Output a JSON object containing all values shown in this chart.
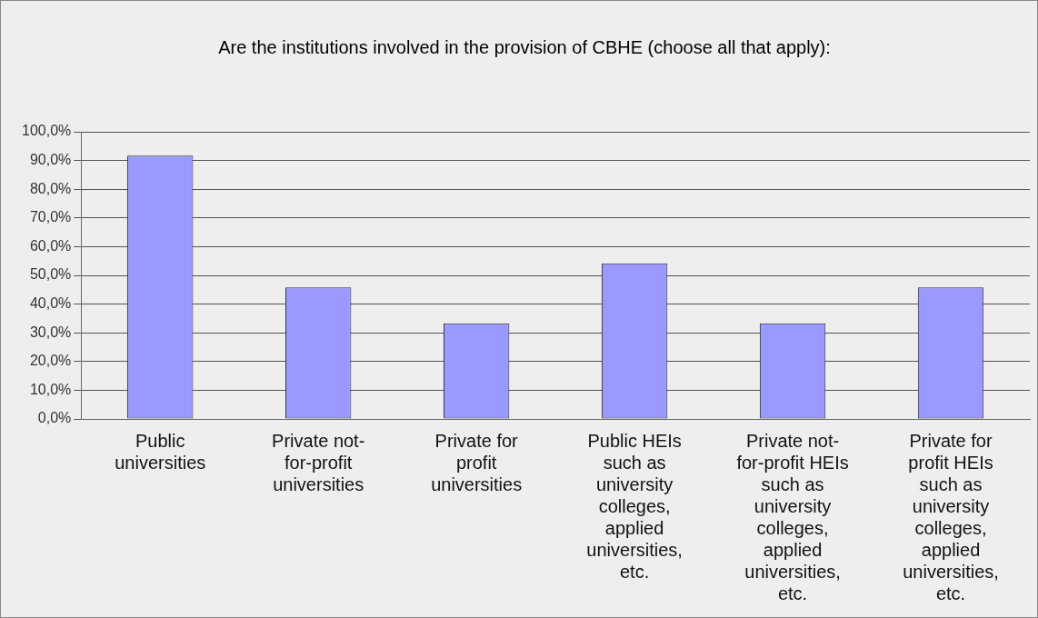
{
  "chart_data": {
    "type": "bar",
    "title": "Are the institutions involved in the provision of CBHE (choose all that apply):",
    "categories": [
      "Public universities",
      "Private not-for-profit universities",
      "Private for profit universities",
      "Public HEIs such as university colleges, applied universities, etc.",
      "Private not-for-profit HEIs such as university colleges, applied universities, etc.",
      "Private for profit HEIs such as university colleges, applied universities, etc."
    ],
    "values": [
      91.7,
      45.8,
      33.3,
      54.2,
      33.3,
      45.8
    ],
    "color": "#9999ff",
    "ylim": [
      0,
      100
    ],
    "yticks": [
      {
        "value": 0,
        "label": "0,0%"
      },
      {
        "value": 10,
        "label": "10,0%"
      },
      {
        "value": 20,
        "label": "20,0%"
      },
      {
        "value": 30,
        "label": "30,0%"
      },
      {
        "value": 40,
        "label": "40,0%"
      },
      {
        "value": 50,
        "label": "50,0%"
      },
      {
        "value": 60,
        "label": "60,0%"
      },
      {
        "value": 70,
        "label": "70,0%"
      },
      {
        "value": 80,
        "label": "80,0%"
      },
      {
        "value": 90,
        "label": "90,0%"
      },
      {
        "value": 100,
        "label": "100,0%"
      }
    ],
    "grid": "y",
    "legend": false
  }
}
